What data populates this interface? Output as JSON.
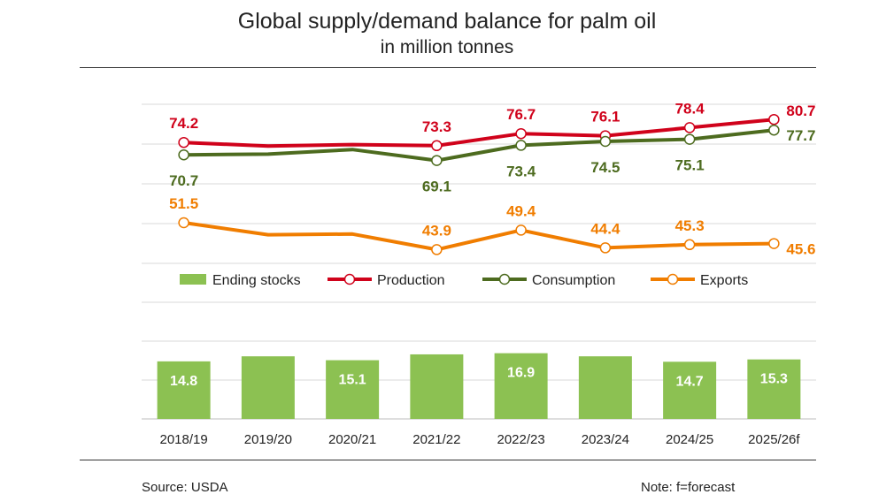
{
  "header": {
    "title": "Global supply/demand balance for palm oil",
    "subtitle": "in million tonnes"
  },
  "footer": {
    "source": "Source: USDA",
    "note": "Note: f=forecast"
  },
  "chart_data": {
    "type": "line",
    "categories": [
      "2018/19",
      "2019/20",
      "2020/21",
      "2021/22",
      "2022/23",
      "2023/24",
      "2024/25",
      "2025/26f"
    ],
    "series": [
      {
        "name": "Production",
        "type": "line",
        "color": "#d0021b",
        "values": [
          74.2,
          73.2,
          73.6,
          73.3,
          76.7,
          76.1,
          78.4,
          80.7
        ],
        "labels": [
          "74.2",
          "",
          "",
          "73.3",
          "76.7",
          "76.1",
          "78.4",
          "80.7"
        ]
      },
      {
        "name": "Consumption",
        "type": "line",
        "color": "#4d6b1f",
        "values": [
          70.7,
          70.9,
          72.2,
          69.1,
          73.4,
          74.5,
          75.1,
          77.7
        ],
        "labels": [
          "70.7",
          "",
          "",
          "69.1",
          "73.4",
          "74.5",
          "75.1",
          "77.7"
        ]
      },
      {
        "name": "Exports",
        "type": "line",
        "color": "#f07d00",
        "values": [
          51.5,
          48.1,
          48.3,
          43.9,
          49.4,
          44.4,
          45.3,
          45.6
        ],
        "labels": [
          "51.5",
          "",
          "",
          "43.9",
          "49.4",
          "44.4",
          "45.3",
          "45.6"
        ]
      },
      {
        "name": "Ending stocks",
        "type": "bar",
        "color": "#8cc152",
        "values": [
          14.8,
          16.1,
          15.1,
          16.6,
          16.9,
          16.1,
          14.7,
          15.3
        ],
        "labels": [
          "14.8",
          "",
          "15.1",
          "",
          "16.9",
          "",
          "14.7",
          "15.3"
        ]
      }
    ],
    "legend": [
      "Ending stocks",
      "Production",
      "Consumption",
      "Exports"
    ],
    "legend_position": "middle",
    "grid": true,
    "ylim_lines": [
      40,
      85
    ],
    "ylim_bars": [
      0,
      40
    ]
  }
}
